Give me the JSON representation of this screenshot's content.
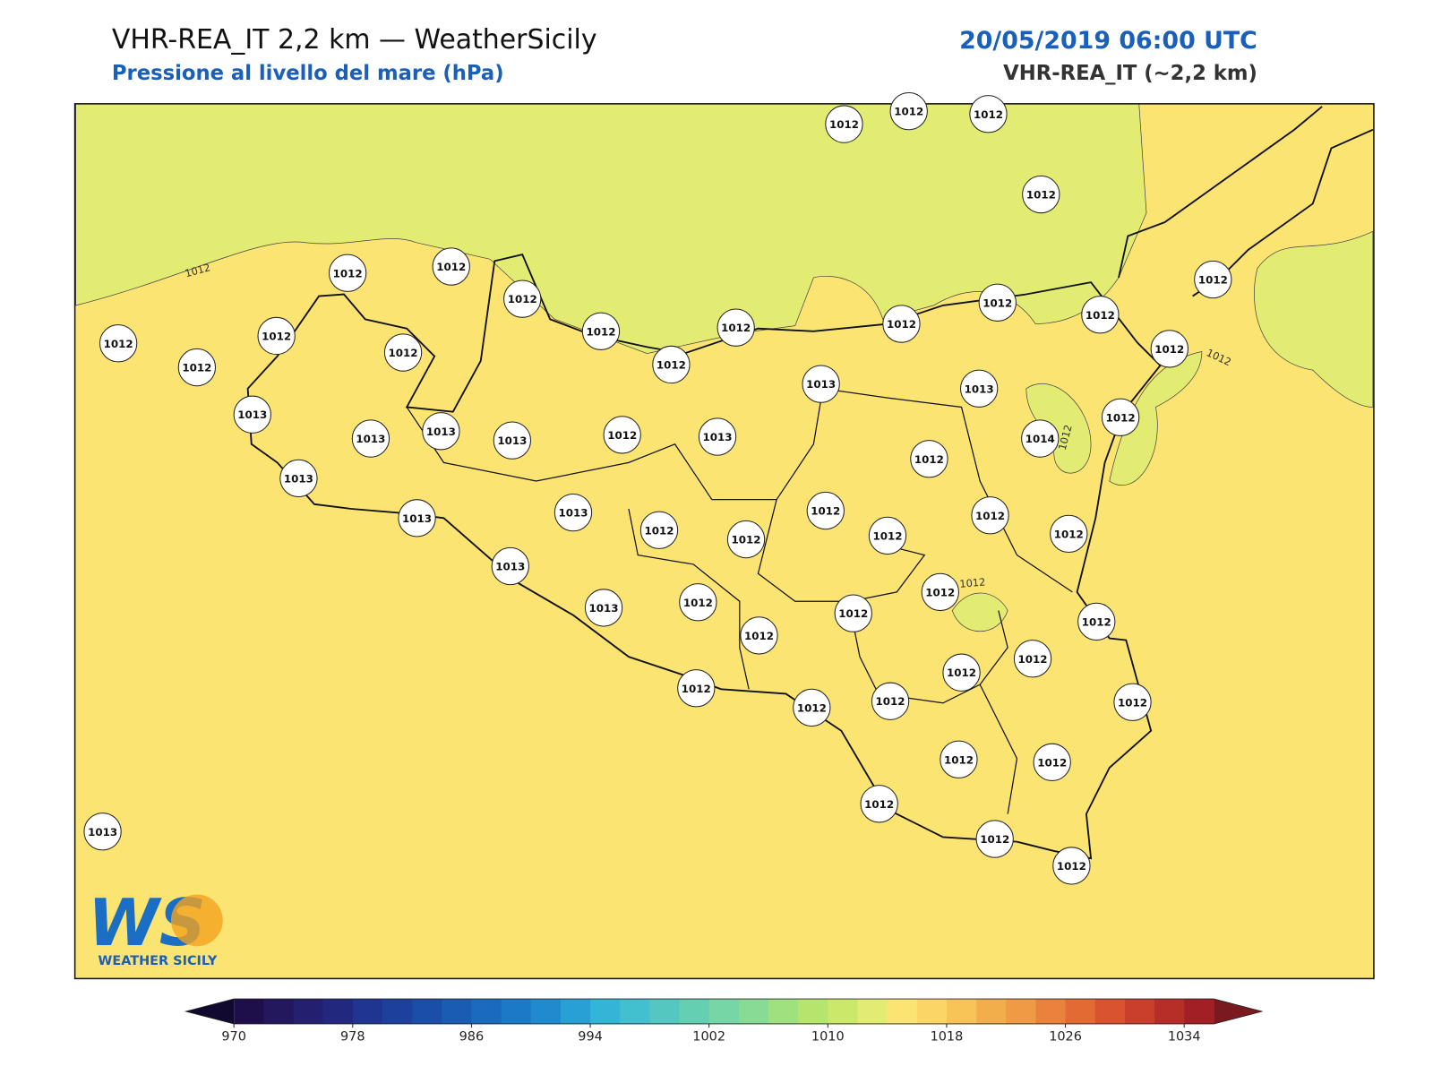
{
  "header": {
    "title": "VHR-REA_IT 2,2 km — WeatherSicily",
    "subtitle": "Pressione al livello del mare (hPa)",
    "datetime": "20/05/2019 06:00 UTC",
    "model": "VHR-REA_IT (~2,2 km)"
  },
  "map": {
    "stations": [
      1012,
      1012,
      1012,
      1012,
      1012,
      1012,
      1012,
      1012,
      1012,
      1012,
      1012,
      1012,
      1012,
      1012,
      1012,
      1012,
      1012,
      1012,
      1012,
      1013,
      1013,
      1013,
      1013,
      1013,
      1013,
      1012,
      1013,
      1014,
      1012,
      1012,
      1013,
      1012,
      1012,
      1013,
      1012,
      1012,
      1012,
      1012,
      1013,
      1013,
      1012,
      1012,
      1013,
      1012,
      1012,
      1012,
      1012,
      1012,
      1012,
      1012,
      1012,
      1012,
      1012,
      1012,
      1012,
      1012,
      1012,
      1013
    ],
    "contour_labels": [
      1012,
      1012,
      1012,
      1012
    ]
  },
  "colorbar": {
    "lim": [
      970,
      1036
    ],
    "ticks": [
      970,
      978,
      986,
      994,
      1002,
      1010,
      1018,
      1026,
      1034
    ],
    "colors": [
      "#1e0f4a",
      "#23175e",
      "#241f6e",
      "#22287e",
      "#1f358f",
      "#1c409c",
      "#1a4ea8",
      "#1a5cb3",
      "#1a6bbf",
      "#1b7ac8",
      "#1f8acd",
      "#28a0d3",
      "#33b5d6",
      "#42c0cf",
      "#54c8c0",
      "#65cfb2",
      "#76d6a5",
      "#88db95",
      "#9fe07f",
      "#b5e56d",
      "#cce86b",
      "#e3ec72",
      "#fce473",
      "#fbd566",
      "#f8c458",
      "#f3ae4c",
      "#ef9a44",
      "#ea823b",
      "#e46a33",
      "#d9542e",
      "#ca3f2b",
      "#b72d28",
      "#a11f25"
    ],
    "extend_colors": [
      "#120a2e",
      "#7a1a1f"
    ]
  },
  "logo": {
    "mark": "WS",
    "text": "WEATHER SICILY"
  }
}
